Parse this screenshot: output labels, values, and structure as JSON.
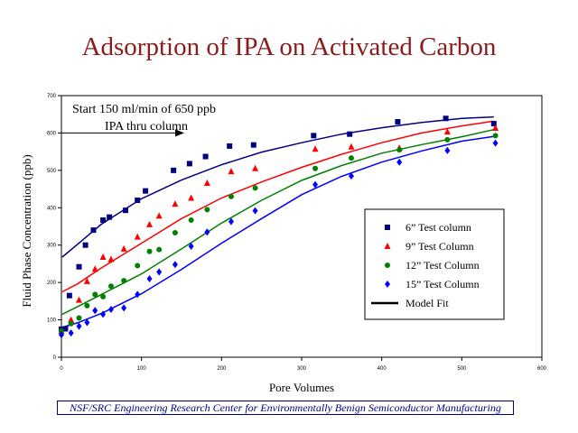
{
  "title": "Adsorption of IPA on Activated Carbon",
  "footer": "NSF/SRC Engineering Research Center for Environmentally Benign Semiconductor Manufacturing",
  "chart_data": {
    "type": "scatter",
    "xlabel": "Pore Volumes",
    "ylabel": "Fluid Phase Concentration (ppb)",
    "xlim": [
      0,
      600
    ],
    "ylim": [
      0,
      700
    ],
    "xticks": [
      "0",
      "100",
      "200",
      "300",
      "400",
      "500",
      "600"
    ],
    "yticks": [
      "0",
      "100",
      "200",
      "300",
      "400",
      "500",
      "600",
      "700"
    ],
    "annotation": {
      "line1": "Start 150 ml/min of 650 ppb",
      "line2": "IPA thru column"
    },
    "legend_position": "center-right",
    "series": [
      {
        "name": "6” Test column",
        "marker": "square",
        "color": "#000080",
        "points": [
          [
            0,
            75
          ],
          [
            5,
            76
          ],
          [
            10,
            165
          ],
          [
            22,
            242
          ],
          [
            30,
            300
          ],
          [
            40,
            340
          ],
          [
            52,
            367
          ],
          [
            60,
            375
          ],
          [
            80,
            393
          ],
          [
            95,
            420
          ],
          [
            105,
            445
          ],
          [
            140,
            500
          ],
          [
            160,
            518
          ],
          [
            180,
            537
          ],
          [
            210,
            565
          ],
          [
            240,
            568
          ],
          [
            315,
            593
          ],
          [
            360,
            597
          ],
          [
            420,
            630
          ],
          [
            480,
            639
          ],
          [
            540,
            625
          ]
        ],
        "fit": [
          [
            1,
            268
          ],
          [
            20,
            302
          ],
          [
            50,
            356
          ],
          [
            100,
            424
          ],
          [
            150,
            474
          ],
          [
            200,
            515
          ],
          [
            250,
            549
          ],
          [
            300,
            574
          ],
          [
            350,
            597
          ],
          [
            400,
            614
          ],
          [
            450,
            628
          ],
          [
            500,
            639
          ],
          [
            540,
            643
          ]
        ]
      },
      {
        "name": "9” Test Column",
        "marker": "triangle",
        "color": "#ff0000",
        "points": [
          [
            0,
            70
          ],
          [
            12,
            100
          ],
          [
            22,
            153
          ],
          [
            32,
            203
          ],
          [
            42,
            236
          ],
          [
            52,
            268
          ],
          [
            62,
            262
          ],
          [
            78,
            290
          ],
          [
            95,
            322
          ],
          [
            110,
            355
          ],
          [
            122,
            378
          ],
          [
            142,
            410
          ],
          [
            162,
            426
          ],
          [
            182,
            466
          ],
          [
            212,
            497
          ],
          [
            242,
            505
          ],
          [
            317,
            557
          ],
          [
            362,
            563
          ],
          [
            422,
            560
          ],
          [
            482,
            603
          ],
          [
            542,
            613
          ]
        ],
        "fit": [
          [
            1,
            175
          ],
          [
            20,
            196
          ],
          [
            50,
            239
          ],
          [
            100,
            305
          ],
          [
            150,
            371
          ],
          [
            200,
            426
          ],
          [
            250,
            469
          ],
          [
            300,
            508
          ],
          [
            350,
            543
          ],
          [
            400,
            574
          ],
          [
            450,
            600
          ],
          [
            500,
            619
          ],
          [
            540,
            632
          ]
        ]
      },
      {
        "name": "12” Test Column",
        "marker": "circle",
        "color": "#008000",
        "points": [
          [
            0,
            70
          ],
          [
            12,
            90
          ],
          [
            22,
            105
          ],
          [
            32,
            138
          ],
          [
            42,
            168
          ],
          [
            52,
            162
          ],
          [
            62,
            190
          ],
          [
            78,
            205
          ],
          [
            95,
            245
          ],
          [
            110,
            283
          ],
          [
            122,
            288
          ],
          [
            142,
            333
          ],
          [
            162,
            367
          ],
          [
            182,
            395
          ],
          [
            212,
            430
          ],
          [
            242,
            453
          ],
          [
            317,
            505
          ],
          [
            362,
            533
          ],
          [
            422,
            555
          ],
          [
            482,
            582
          ],
          [
            542,
            593
          ]
        ],
        "fit": [
          [
            1,
            115
          ],
          [
            20,
            135
          ],
          [
            50,
            168
          ],
          [
            100,
            223
          ],
          [
            150,
            290
          ],
          [
            200,
            359
          ],
          [
            250,
            420
          ],
          [
            300,
            473
          ],
          [
            350,
            513
          ],
          [
            400,
            546
          ],
          [
            450,
            569
          ],
          [
            500,
            590
          ],
          [
            540,
            609
          ]
        ]
      },
      {
        "name": "15” Test Column",
        "marker": "diamond",
        "color": "#0000ff",
        "points": [
          [
            0,
            60
          ],
          [
            12,
            65
          ],
          [
            22,
            83
          ],
          [
            32,
            93
          ],
          [
            42,
            125
          ],
          [
            52,
            115
          ],
          [
            62,
            128
          ],
          [
            78,
            132
          ],
          [
            95,
            168
          ],
          [
            110,
            210
          ],
          [
            122,
            228
          ],
          [
            142,
            248
          ],
          [
            162,
            297
          ],
          [
            182,
            335
          ],
          [
            212,
            363
          ],
          [
            242,
            392
          ],
          [
            317,
            462
          ],
          [
            362,
            485
          ],
          [
            422,
            522
          ],
          [
            482,
            553
          ],
          [
            542,
            573
          ]
        ],
        "fit": [
          [
            1,
            80
          ],
          [
            20,
            92
          ],
          [
            50,
            117
          ],
          [
            100,
            170
          ],
          [
            150,
            235
          ],
          [
            200,
            305
          ],
          [
            250,
            371
          ],
          [
            300,
            435
          ],
          [
            350,
            484
          ],
          [
            400,
            522
          ],
          [
            450,
            552
          ],
          [
            500,
            578
          ],
          [
            540,
            591
          ]
        ]
      }
    ],
    "model_fit_label": "Model Fit",
    "model_fit_color": "#000000"
  }
}
